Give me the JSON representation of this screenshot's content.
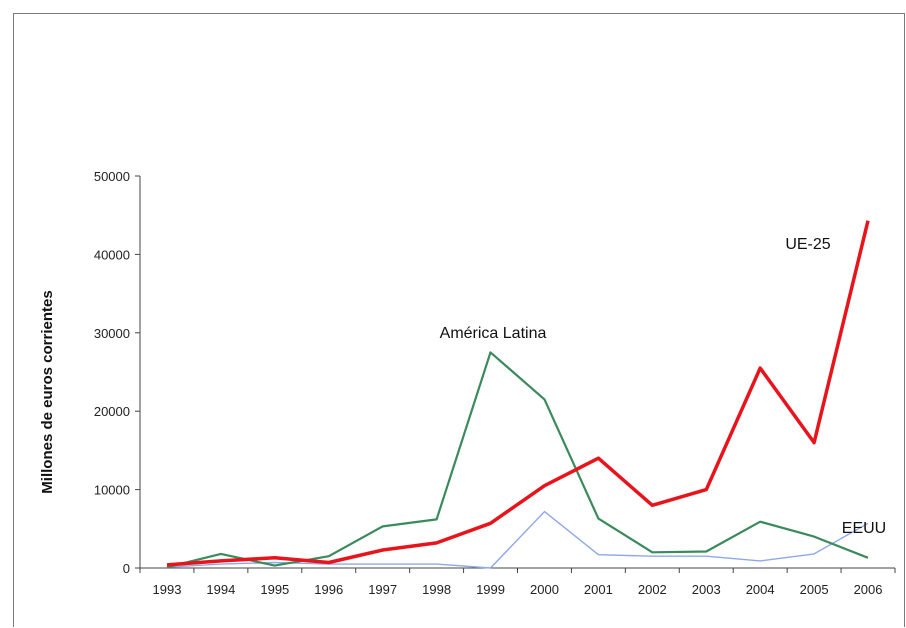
{
  "chart_data": {
    "type": "line",
    "ylabel": "Millones de euros corrientes",
    "ylim": [
      0,
      50000
    ],
    "yticks": [
      0,
      10000,
      20000,
      30000,
      40000,
      50000
    ],
    "x": [
      "1993",
      "1994",
      "1995",
      "1996",
      "1997",
      "1998",
      "1999",
      "2000",
      "2001",
      "2002",
      "2003",
      "2004",
      "2005",
      "2006"
    ],
    "grid": false,
    "series": [
      {
        "name": "UE-25",
        "color": "#e8141b",
        "values": [
          400,
          900,
          1300,
          700,
          2300,
          3200,
          5700,
          10500,
          14000,
          8000,
          10000,
          25500,
          16000,
          44300
        ]
      },
      {
        "name": "América Latina",
        "color": "#3a8a5c",
        "values": [
          100,
          1800,
          300,
          1500,
          5300,
          6200,
          27500,
          21500,
          6300,
          2000,
          2100,
          5900,
          4000,
          1300
        ]
      },
      {
        "name": "EEUU",
        "color": "#8fa8e8",
        "values": [
          100,
          500,
          700,
          500,
          500,
          500,
          0,
          7200,
          1700,
          1500,
          1500,
          900,
          1800,
          5700
        ]
      }
    ]
  }
}
